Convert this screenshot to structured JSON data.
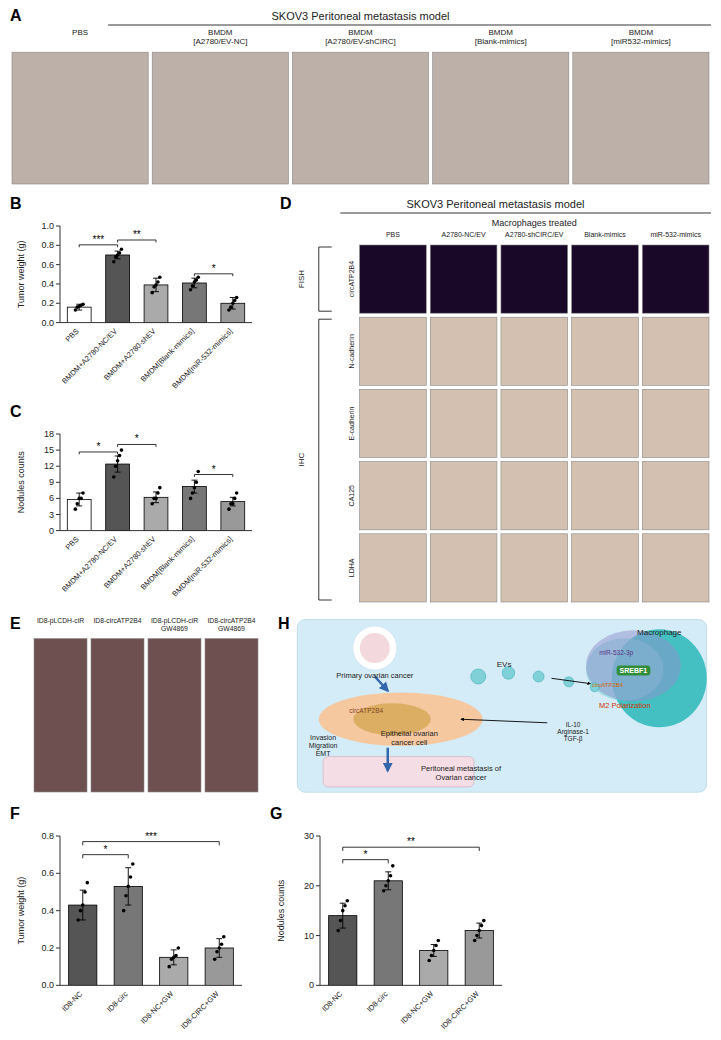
{
  "chart_data": [
    {
      "type": "image_grid",
      "title": "SKOV3 Peritoneal metastasis model",
      "categories": [
        "PBS",
        "BMDM\n[A2780/EV-NC]",
        "BMDM\n[A2780/EV-shCIRC]",
        "BMDM\n[Blank-mimics]",
        "BMDM\n[miR532-mimics]"
      ],
      "annotations": [
        "A"
      ]
    },
    {
      "type": "bar",
      "ylabel": "Tumor weight (g)",
      "categories": [
        "PBS",
        "BMDM+A2780-NC/EV",
        "BMDM+A2780-shEV",
        "BMDM[Blank-mimics]",
        "BMDM[miR-532-mimics]"
      ],
      "values": [
        0.16,
        0.7,
        0.39,
        0.41,
        0.2
      ],
      "errors": [
        0.03,
        0.04,
        0.07,
        0.05,
        0.06
      ],
      "points": [
        [
          0.13,
          0.16,
          0.17,
          0.18,
          0.19
        ],
        [
          0.63,
          0.68,
          0.7,
          0.72,
          0.76
        ],
        [
          0.31,
          0.37,
          0.39,
          0.42,
          0.47
        ],
        [
          0.34,
          0.38,
          0.42,
          0.44,
          0.47
        ],
        [
          0.13,
          0.16,
          0.2,
          0.23,
          0.26
        ]
      ],
      "colors": [
        "#ffffff",
        "#555555",
        "#aaaaaa",
        "#777777",
        "#999999"
      ],
      "ylim": [
        0.0,
        1.0
      ],
      "yticks": [
        {
          "value": 0.0,
          "label": "0.0"
        },
        0.2,
        0.4,
        0.6,
        0.8,
        {
          "value": 1.0,
          "label": "1.0"
        }
      ],
      "annotations": [
        {
          "text": "B"
        },
        {
          "text": "***",
          "from": "PBS",
          "to": "BMDM+A2780-NC/EV",
          "y": 0.78
        },
        {
          "text": "**",
          "from": "BMDM+A2780-NC/EV",
          "to": "BMDM+A2780-shEV",
          "y": 0.83
        },
        {
          "text": "*",
          "from": "BMDM[Blank-mimics]",
          "to": "BMDM[miR-532-mimics]",
          "y": 0.48
        }
      ]
    },
    {
      "type": "bar",
      "ylabel": "Nodules counts",
      "categories": [
        "PBS",
        "BMDM+A2780-NC/EV",
        "BMDM+A2780-shEV",
        "BMDM[Blank-mimics]",
        "BMDM[miR-532-mimics]"
      ],
      "values": [
        5.8,
        12.4,
        6.2,
        8.2,
        5.4
      ],
      "errors": [
        1.2,
        1.5,
        1.0,
        1.2,
        0.8
      ],
      "points": [
        [
          4,
          5,
          6,
          6,
          7
        ],
        [
          10,
          12,
          13,
          14,
          15
        ],
        [
          5,
          6,
          6,
          7,
          8
        ],
        [
          6,
          7,
          8,
          9,
          11
        ],
        [
          4,
          5,
          5,
          6,
          7
        ]
      ],
      "colors": [
        "#ffffff",
        "#555555",
        "#aaaaaa",
        "#777777",
        "#999999"
      ],
      "ylim": [
        0,
        18
      ],
      "yticks": [
        0,
        3,
        6,
        9,
        12,
        15,
        18
      ],
      "annotations": [
        {
          "text": "C"
        },
        {
          "text": "*",
          "from": "PBS",
          "to": "BMDM+A2780-NC/EV",
          "y": 14.2
        },
        {
          "text": "*",
          "from": "BMDM+A2780-NC/EV",
          "to": "BMDM+A2780-shEV",
          "y": 15.6
        },
        {
          "text": "*",
          "from": "BMDM[Blank-mimics]",
          "to": "BMDM[miR-532-mimics]",
          "y": 10.0
        }
      ]
    },
    {
      "type": "image_grid",
      "title": "SKOV3 Peritoneal metastasis model",
      "subtitle": "Macrophages treated",
      "categories": [
        "PBS",
        "A2780-NC/EV",
        "A2780-shCIRC/EV",
        "Blank-mimics",
        "miR-532-mimics"
      ],
      "rows": [
        "circATP2B4",
        "N-cadherin",
        "E-cadherin",
        "CA125",
        "LDHA"
      ],
      "annotations": [
        "D",
        "FISH",
        "IHC"
      ]
    },
    {
      "type": "image_grid",
      "categories": [
        "ID8-pLCDH-ciR",
        "ID8-circATP2B4",
        "ID8-pLCDH-ciR\nGW4869",
        "ID8-circATP2B4\nGW4869"
      ],
      "annotations": [
        "E"
      ]
    },
    {
      "type": "diagram",
      "annotations": [
        "H",
        "Primary ovarian cancer",
        "Macrophage",
        "Epithelial ovarian\ncancer cell",
        "circATP2B4",
        "EVs",
        "miR-532-3p",
        "SREBF1",
        "circATP2B4",
        "M2 Polarization",
        "IL-10\nArginase-1\nTGF-β",
        "Invasion\nMigration\nEMT",
        "Peritoneal metastasis of\nOvarian cancer"
      ]
    },
    {
      "type": "bar",
      "ylabel": "Tumor weight (g)",
      "categories": [
        "ID8-NC",
        "ID8-circ",
        "ID8-NC+GW",
        "ID8-CIRC+GW"
      ],
      "values": [
        0.43,
        0.53,
        0.15,
        0.2
      ],
      "errors": [
        0.08,
        0.1,
        0.04,
        0.05
      ],
      "points": [
        [
          0.35,
          0.4,
          0.43,
          0.5,
          0.55
        ],
        [
          0.4,
          0.48,
          0.53,
          0.58,
          0.65
        ],
        [
          0.1,
          0.14,
          0.15,
          0.16,
          0.2
        ],
        [
          0.14,
          0.18,
          0.2,
          0.22,
          0.26
        ]
      ],
      "colors": [
        "#555555",
        "#777777",
        "#aaaaaa",
        "#999999"
      ],
      "ylim": [
        0.0,
        0.8
      ],
      "yticks": [
        {
          "value": 0.0,
          "label": "0.0"
        },
        0.2,
        0.4,
        0.6,
        0.8
      ],
      "annotations": [
        {
          "text": "F"
        },
        {
          "text": "*",
          "from": "ID8-NC",
          "to": "ID8-circ",
          "y": 0.68
        },
        {
          "text": "***",
          "from": "ID8-NC",
          "to": "ID8-CIRC+GW",
          "y": 0.75
        }
      ]
    },
    {
      "type": "bar",
      "ylabel": "Nodules counts",
      "categories": [
        "ID8-NC",
        "ID8-circ",
        "ID8-NC+GW",
        "ID8-CIRC+GW"
      ],
      "values": [
        14,
        21,
        7,
        11
      ],
      "errors": [
        2.5,
        1.8,
        1.2,
        1.5
      ],
      "points": [
        [
          11,
          13,
          15,
          16,
          17
        ],
        [
          19,
          20,
          21,
          22,
          24
        ],
        [
          5,
          6,
          7,
          8,
          9
        ],
        [
          9,
          10,
          11,
          12,
          13
        ]
      ],
      "colors": [
        "#555555",
        "#777777",
        "#aaaaaa",
        "#999999"
      ],
      "ylim": [
        0,
        30
      ],
      "yticks": [
        0,
        10,
        20,
        30
      ],
      "annotations": [
        {
          "text": "G"
        },
        {
          "text": "*",
          "from": "ID8-NC",
          "to": "ID8-circ",
          "y": 24.5
        },
        {
          "text": "**",
          "from": "ID8-NC",
          "to": "ID8-CIRC+GW",
          "y": 27.0
        }
      ]
    }
  ]
}
